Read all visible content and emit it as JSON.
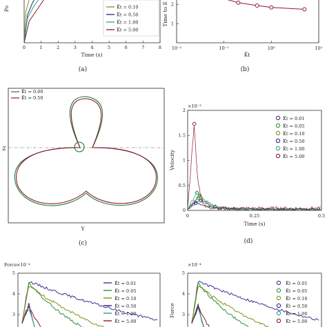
{
  "captions": {
    "a": "(a)",
    "b": "(b)",
    "c": "(c)",
    "d": "(d)"
  },
  "colors": {
    "c001": "#4b2c8f",
    "c005": "#2f8f3a",
    "c010": "#7f8f1a",
    "c050": "#1e2a6e",
    "c100": "#2aa08f",
    "c500": "#8b1a2b",
    "c000": "#1f7a3a"
  },
  "chart_data": [
    {
      "id": "a",
      "type": "line",
      "xlabel": "Time (s)",
      "ylabel": "Po",
      "xlim": [
        0,
        8
      ],
      "x_ticks": [
        "0",
        "1",
        "2",
        "3",
        "4",
        "5",
        "6",
        "7",
        "8"
      ],
      "legend": [
        "K̃t = 0.10",
        "K̃t = 0.50",
        "K̃t = 1.00",
        "K̃t = 5.00"
      ],
      "series": [
        {
          "name": "K̃t = 0.10",
          "x": [
            0,
            0.1,
            0.3,
            0.5,
            0.8
          ],
          "y": [
            0,
            0.5,
            0.7,
            0.8,
            0.9
          ]
        },
        {
          "name": "K̃t = 0.50",
          "x": [
            0,
            0.2,
            0.5,
            0.8,
            1.1
          ],
          "y": [
            0,
            0.45,
            0.65,
            0.78,
            0.9
          ]
        },
        {
          "name": "K̃t = 1.00",
          "x": [
            0,
            0.2,
            0.6,
            1.0,
            1.4
          ],
          "y": [
            0,
            0.4,
            0.6,
            0.75,
            0.9
          ]
        },
        {
          "name": "K̃t = 5.00",
          "x": [
            0,
            0.3,
            0.8,
            1.3,
            1.6
          ],
          "y": [
            0,
            0.35,
            0.55,
            0.75,
            0.9
          ]
        }
      ]
    },
    {
      "id": "b",
      "type": "line",
      "xlabel": "K̃t",
      "ylabel": "Time to E",
      "xscale": "log",
      "xlim": [
        0.01,
        10
      ],
      "x_ticks": [
        "10⁻²",
        "10⁻¹",
        "10⁰",
        "10¹"
      ],
      "y_ticks": [
        "1",
        "2"
      ],
      "series": [
        {
          "x": [
            0.2,
            0.5,
            1.0,
            5.0
          ],
          "y": [
            2.1,
            1.95,
            1.85,
            1.75
          ]
        }
      ]
    },
    {
      "id": "c",
      "type": "line",
      "xlabel": "Y",
      "ylabel": "Z",
      "legend": [
        "K̃t = 0.00",
        "K̃t = 0.50"
      ]
    },
    {
      "id": "d",
      "type": "line",
      "xlabel": "Time (s)",
      "ylabel": "Velocity",
      "multiplier": "×10⁻³",
      "xlim": [
        0,
        0.5
      ],
      "ylim": [
        0,
        2
      ],
      "x_ticks": [
        "0",
        "0.25",
        "0.5"
      ],
      "y_ticks": [
        "0",
        "0.5",
        "1",
        "1.5",
        "2"
      ],
      "legend": [
        "K̃t = 0.01",
        "K̃t = 0.05",
        "K̃t = 0.10",
        "K̃t = 0.50",
        "K̃t = 1.00",
        "K̃t = 5.00"
      ],
      "peaks": [
        {
          "name": "K̃t = 0.01",
          "x": 0.05,
          "y": 0.2
        },
        {
          "name": "K̃t = 0.05",
          "x": 0.04,
          "y": 0.25
        },
        {
          "name": "K̃t = 0.10",
          "x": 0.045,
          "y": 0.3
        },
        {
          "name": "K̃t = 0.50",
          "x": 0.03,
          "y": 0.15
        },
        {
          "name": "K̃t = 1.00",
          "x": 0.035,
          "y": 0.35
        },
        {
          "name": "K̃t = 5.00",
          "x": 0.025,
          "y": 1.73
        }
      ]
    },
    {
      "id": "e",
      "type": "line",
      "ylabel": "Force",
      "multiplier": "×10⁻⁴",
      "y_ticks": [
        "5",
        "4",
        "3"
      ],
      "legend": [
        "K̃t = 0.01",
        "K̃t = 0.05",
        "K̃t = 0.10",
        "K̃t = 0.50",
        "K̃t = 1.00",
        "K̃t = 5.00"
      ]
    },
    {
      "id": "f",
      "type": "line",
      "ylabel": "Force",
      "multiplier": "×10⁻⁴",
      "y_ticks": [
        "5",
        "4",
        "3"
      ],
      "legend": [
        "K̃t = 0.01",
        "K̃t = 0.05",
        "K̃t = 0.10",
        "K̃t = 0.50",
        "K̃t = 1.00",
        "K̃t = 5.00"
      ]
    }
  ]
}
